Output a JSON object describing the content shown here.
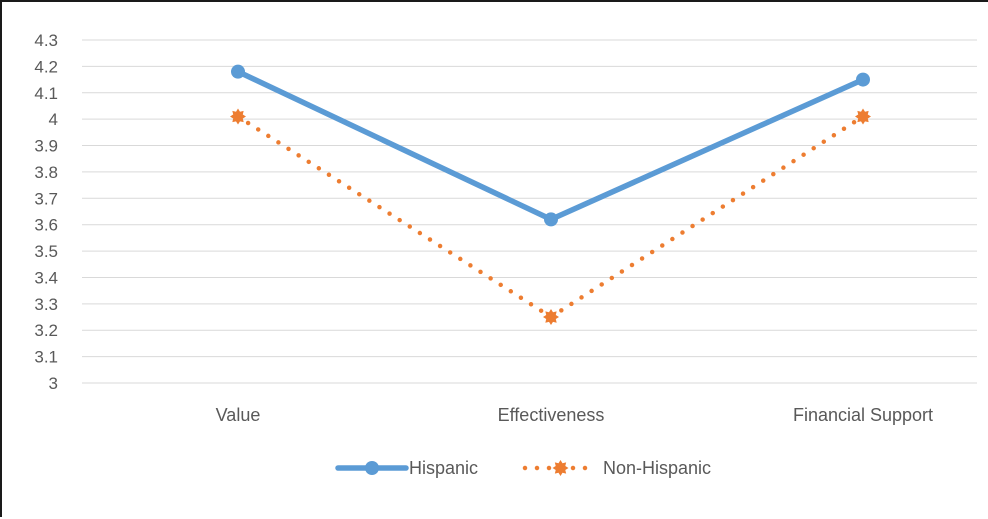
{
  "chart_data": {
    "type": "line",
    "categories": [
      "Value",
      "Effectiveness",
      "Financial Support"
    ],
    "series": [
      {
        "name": "Hispanic",
        "values": [
          4.18,
          3.62,
          4.15
        ],
        "color": "#5B9BD5",
        "style": "solid",
        "marker": "circle"
      },
      {
        "name": "Non-Hispanic",
        "values": [
          4.01,
          3.25,
          4.01
        ],
        "color": "#ED7D31",
        "style": "dotted",
        "marker": "burst"
      }
    ],
    "ylim": [
      3,
      4.3
    ],
    "yticks": [
      "3",
      "3.1",
      "3.2",
      "3.3",
      "3.4",
      "3.5",
      "3.6",
      "3.7",
      "3.8",
      "3.9",
      "4",
      "4.1",
      "4.2",
      "4.3"
    ],
    "grid": true,
    "legend_position": "bottom"
  }
}
